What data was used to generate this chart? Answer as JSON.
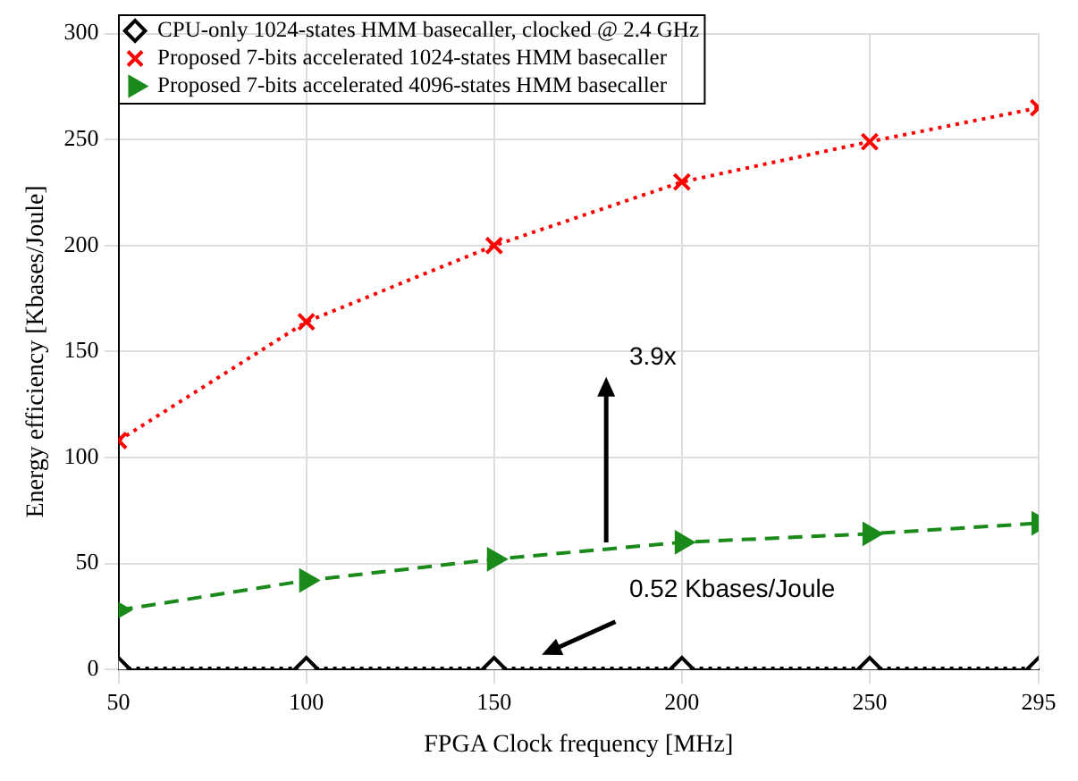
{
  "chart_data": {
    "type": "line",
    "xlabel": "FPGA Clock frequency [MHz]",
    "ylabel": "Energy efficiency [Kbases/Joule]",
    "x": [
      50,
      100,
      150,
      200,
      250,
      295
    ],
    "series": [
      {
        "name": "CPU-only 1024-states HMM basecaller, clocked @ 2.4 GHz",
        "color": "#000000",
        "marker": "diamond",
        "line_style": "dotted",
        "values": [
          0.5,
          0.5,
          0.5,
          0.5,
          0.5,
          0.5
        ]
      },
      {
        "name": "Proposed 7-bits accelerated 1024-states HMM basecaller",
        "color": "#ff0000",
        "marker": "cross",
        "line_style": "dotted",
        "values": [
          108,
          164,
          200,
          230,
          249,
          265
        ]
      },
      {
        "name": "Proposed 7-bits accelerated 4096-states HMM basecaller",
        "color": "#1a8a1a",
        "marker": "triangle",
        "line_style": "dashed",
        "values": [
          28,
          42,
          52,
          60,
          64,
          69
        ]
      }
    ],
    "xlim": [
      50,
      295
    ],
    "xticks": [
      50,
      100,
      150,
      200,
      250,
      295
    ],
    "ylim": [
      0,
      300
    ],
    "yticks": [
      0,
      50,
      100,
      150,
      200,
      250,
      300
    ],
    "grid": true,
    "legend": "top left",
    "annotations": [
      "3.9x",
      "0.52 Kbases/Joule"
    ]
  }
}
